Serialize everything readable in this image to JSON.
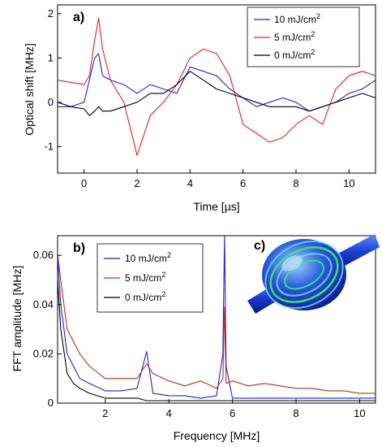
{
  "colors": {
    "blue": "#1f1fdc",
    "red": "#ee1c1c",
    "darkred": "#b8321c",
    "black": "#000000"
  },
  "chart_data": [
    {
      "type": "line",
      "panel_label": "a)",
      "xlabel": "Time [µs]",
      "ylabel": "Optical shift [MHz]",
      "xlim": [
        -1,
        11
      ],
      "ylim": [
        -1.6,
        2.2
      ],
      "xticks": [
        "0",
        "2",
        "4",
        "6",
        "8",
        "10"
      ],
      "yticks": [
        "-1",
        "0",
        "1",
        "2"
      ],
      "legend_position": "top-right",
      "x": [
        -1,
        -0.5,
        0,
        0.2,
        0.4,
        0.55,
        0.7,
        1,
        1.5,
        2,
        2.5,
        3,
        3.5,
        4,
        4.5,
        5,
        5.5,
        6,
        6.5,
        7,
        7.5,
        8,
        8.5,
        9,
        9.5,
        10,
        10.5,
        11
      ],
      "series": [
        {
          "name_prefix": "10 mJ/cm",
          "name_sup": "2",
          "color_key": "blue",
          "values": [
            -0.1,
            -0.1,
            0,
            0.5,
            1.0,
            1.1,
            0.6,
            0.5,
            0.4,
            0.2,
            0.4,
            0.3,
            0.2,
            0.8,
            0.7,
            0.6,
            0.3,
            0.1,
            -0.1,
            0,
            0.1,
            0,
            -0.2,
            -0.1,
            0,
            0.2,
            0.3,
            0.5
          ]
        },
        {
          "name_prefix": "5 mJ/cm",
          "name_sup": "2",
          "color_key": "red",
          "values": [
            0.5,
            0.45,
            0.4,
            0.6,
            1.4,
            1.9,
            1.2,
            0.5,
            0,
            -1.2,
            -0.3,
            0,
            0.4,
            1.0,
            1.2,
            1.1,
            0.6,
            -0.5,
            -0.7,
            -0.9,
            -0.8,
            -0.5,
            -0.3,
            -0.5,
            0.3,
            0.6,
            0.7,
            0.6
          ]
        },
        {
          "name_prefix": "0 mJ/cm",
          "name_sup": "2",
          "color_key": "black",
          "values": [
            0,
            -0.1,
            -0.15,
            -0.3,
            -0.2,
            -0.1,
            -0.2,
            -0.2,
            -0.1,
            0,
            0.2,
            0.2,
            0.4,
            0.7,
            0.5,
            0.3,
            0.2,
            0.1,
            0,
            -0.1,
            -0.1,
            -0.1,
            -0.2,
            -0.1,
            0,
            0.1,
            0.2,
            0.1
          ]
        }
      ]
    },
    {
      "type": "line",
      "panel_label": "b)",
      "inset_label": "c)",
      "xlabel": "Frequency [MHz]",
      "ylabel": "FFT amplitude [MHz]",
      "xlim": [
        0.5,
        10.5
      ],
      "ylim": [
        0,
        0.068
      ],
      "xticks": [
        "2",
        "4",
        "6",
        "8",
        "10"
      ],
      "yticks": [
        "0",
        "0.02",
        "0.04",
        "0.06"
      ],
      "legend_position": "top-center",
      "x": [
        0.5,
        0.6,
        0.8,
        1.0,
        1.2,
        1.5,
        2.0,
        2.5,
        3.0,
        3.3,
        3.5,
        4.0,
        4.5,
        5.0,
        5.5,
        5.7,
        5.75,
        5.8,
        6.0,
        6.5,
        7.0,
        7.5,
        8.0,
        8.5,
        9.0,
        9.5,
        10.0,
        10.5
      ],
      "series": [
        {
          "name_prefix": "10 mJ/cm",
          "name_sup": "2",
          "color_key": "blue",
          "values": [
            0.06,
            0.04,
            0.02,
            0.015,
            0.01,
            0.008,
            0.005,
            0.005,
            0.006,
            0.021,
            0.004,
            0.003,
            0.003,
            0.002,
            0.003,
            0.02,
            0.068,
            0.015,
            0.002,
            0.002,
            0.002,
            0.002,
            0.002,
            0.002,
            0.002,
            0.002,
            0.002,
            0.002
          ]
        },
        {
          "name_prefix": "5 mJ/cm",
          "name_sup": "2",
          "color_key": "darkred",
          "values": [
            0.061,
            0.05,
            0.03,
            0.025,
            0.02,
            0.015,
            0.01,
            0.01,
            0.01,
            0.016,
            0.012,
            0.009,
            0.007,
            0.009,
            0.006,
            0.01,
            0.039,
            0.008,
            0.009,
            0.007,
            0.008,
            0.007,
            0.006,
            0.006,
            0.005,
            0.005,
            0.004,
            0.004
          ]
        },
        {
          "name_prefix": "0 mJ/cm",
          "name_sup": "2",
          "color_key": "black",
          "values": [
            0.05,
            0.03,
            0.012,
            0.008,
            0.006,
            0.004,
            0.002,
            0.002,
            0.002,
            0.001,
            0.001,
            0.001,
            0.001,
            0.001,
            0.001,
            0.001,
            0.001,
            0.001,
            0.001,
            0.001,
            0.001,
            0.001,
            0.001,
            0.001,
            0.001,
            0.001,
            0.001,
            0.001
          ]
        }
      ]
    }
  ]
}
